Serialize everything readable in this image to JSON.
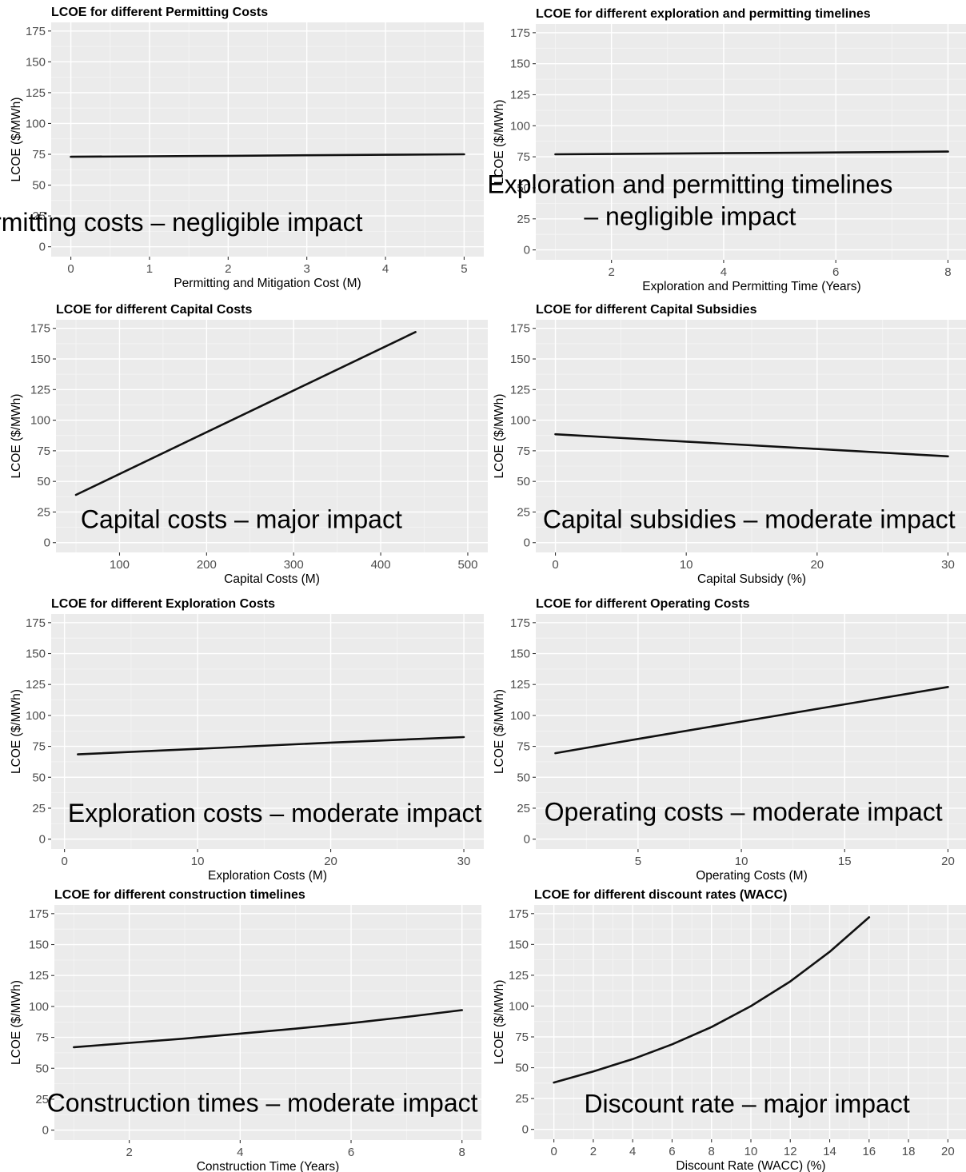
{
  "chart_data": [
    {
      "type": "line",
      "title": "LCOE for different Permitting Costs",
      "xlabel": "Permitting and Mitigation Cost (M)",
      "ylabel": "LCOE ($/MWh)",
      "xlim": [
        -0.25,
        5.25
      ],
      "ylim": [
        -8,
        182
      ],
      "xticks": [
        0,
        1,
        2,
        3,
        4,
        5
      ],
      "yticks": [
        0,
        25,
        50,
        75,
        100,
        125,
        150,
        175
      ],
      "x": [
        0,
        1,
        2,
        3,
        4,
        5
      ],
      "y": [
        73,
        73.4,
        73.8,
        74.2,
        74.6,
        75
      ],
      "annotation": [
        "Permitting costs – negligible impact"
      ],
      "annotation_pos": [
        1.16,
        20
      ]
    },
    {
      "type": "line",
      "title": "LCOE for different exploration and permitting timelines",
      "xlabel": "Exploration and Permitting Time (Years)",
      "ylabel": "LCOE ($/MWh)",
      "xlim": [
        0.65,
        8.35
      ],
      "ylim": [
        -8,
        182
      ],
      "xticks": [
        2,
        4,
        6,
        8
      ],
      "yticks": [
        0,
        25,
        50,
        75,
        100,
        125,
        150,
        175
      ],
      "x": [
        1,
        2,
        3,
        4,
        5,
        6,
        7,
        8
      ],
      "y": [
        77,
        77.3,
        77.6,
        77.9,
        78.2,
        78.5,
        78.8,
        79.2
      ],
      "annotation": [
        "Exploration and permitting timelines",
        "– negligible impact"
      ],
      "annotation_pos": [
        3.4,
        40
      ]
    },
    {
      "type": "line",
      "title": "LCOE for different Capital Costs",
      "xlabel": "Capital Costs (M)",
      "ylabel": "LCOE ($/MWh)",
      "xlim": [
        27,
        523
      ],
      "ylim": [
        -8,
        182
      ],
      "xticks": [
        100,
        200,
        300,
        400,
        500
      ],
      "yticks": [
        0,
        25,
        50,
        75,
        100,
        125,
        150,
        175
      ],
      "x": [
        50,
        440
      ],
      "y": [
        39,
        172
      ],
      "annotation": [
        "Capital costs – major impact"
      ],
      "annotation_pos": [
        240,
        19
      ]
    },
    {
      "type": "line",
      "title": "LCOE for different Capital Subsidies",
      "xlabel": "Capital Subsidy (%)",
      "ylabel": "LCOE ($/MWh)",
      "xlim": [
        -1.5,
        31.5
      ],
      "ylim": [
        -8,
        182
      ],
      "xticks": [
        0,
        10,
        20,
        30
      ],
      "yticks": [
        0,
        25,
        50,
        75,
        100,
        125,
        150,
        175
      ],
      "x": [
        0,
        10,
        20,
        30
      ],
      "y": [
        88.5,
        82.5,
        76.5,
        70.5
      ],
      "annotation": [
        "Capital subsidies – moderate impact"
      ],
      "annotation_pos": [
        14.8,
        19
      ]
    },
    {
      "type": "line",
      "title": "LCOE for different Exploration Costs",
      "xlabel": "Exploration Costs (M)",
      "ylabel": "LCOE ($/MWh)",
      "xlim": [
        -1,
        31.5
      ],
      "ylim": [
        -8,
        182
      ],
      "xticks": [
        0,
        10,
        20,
        30
      ],
      "yticks": [
        0,
        25,
        50,
        75,
        100,
        125,
        150,
        175
      ],
      "x": [
        1,
        10,
        20,
        30
      ],
      "y": [
        68.5,
        73,
        78,
        82.5
      ],
      "annotation": [
        "Exploration costs – moderate impact"
      ],
      "annotation_pos": [
        15.8,
        21
      ]
    },
    {
      "type": "line",
      "title": "LCOE for different Operating Costs",
      "xlabel": "Operating Costs (M)",
      "ylabel": "LCOE ($/MWh)",
      "xlim": [
        0.05,
        20.95
      ],
      "ylim": [
        -8,
        182
      ],
      "xticks": [
        5,
        10,
        15,
        20
      ],
      "yticks": [
        0,
        25,
        50,
        75,
        100,
        125,
        150,
        175
      ],
      "x": [
        1,
        5,
        10,
        15,
        20
      ],
      "y": [
        69.5,
        81,
        95,
        109,
        123
      ],
      "annotation": [
        "Operating costs – moderate impact"
      ],
      "annotation_pos": [
        10.1,
        22
      ]
    },
    {
      "type": "line",
      "title": "LCOE for different construction timelines",
      "xlabel": "Construction Time (Years)",
      "ylabel": "LCOE ($/MWh)",
      "xlim": [
        0.65,
        8.35
      ],
      "ylim": [
        -8,
        182
      ],
      "xticks": [
        2,
        4,
        6,
        8
      ],
      "yticks": [
        0,
        25,
        50,
        75,
        100,
        125,
        150,
        175
      ],
      "x": [
        1,
        2,
        3,
        4,
        5,
        6,
        7,
        8
      ],
      "y": [
        67,
        70.5,
        74,
        78,
        82,
        86.5,
        91.5,
        97
      ],
      "annotation": [
        "Construction times – moderate impact"
      ],
      "annotation_pos": [
        4.4,
        22
      ]
    },
    {
      "type": "line",
      "title": "LCOE for different discount rates (WACC)",
      "xlabel": "Discount Rate (WACC) (%)",
      "ylabel": "LCOE ($/MWh)",
      "xlim": [
        -1,
        21
      ],
      "ylim": [
        -8,
        182
      ],
      "xticks": [
        0,
        2,
        4,
        6,
        8,
        10,
        12,
        14,
        16,
        18,
        20
      ],
      "yticks": [
        0,
        25,
        50,
        75,
        100,
        125,
        150,
        175
      ],
      "x": [
        0,
        2,
        4,
        6,
        8,
        10,
        12,
        14,
        16
      ],
      "y": [
        38,
        47,
        57,
        69,
        83,
        100,
        120,
        144,
        172
      ],
      "annotation": [
        "Discount rate – major impact"
      ],
      "annotation_pos": [
        9.8,
        21
      ]
    }
  ]
}
